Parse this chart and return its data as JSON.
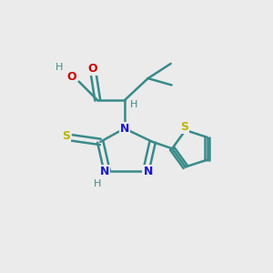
{
  "background_color": "#ebebeb",
  "atom_colors": {
    "C": "#3a8a8a",
    "N": "#1818cc",
    "O": "#cc0000",
    "S_thiol": "#b8b800",
    "S_thio": "#b8b800",
    "H": "#3a8a8a"
  },
  "bond_color": "#3a8a8a",
  "bond_lw": 1.8,
  "figsize": [
    3.0,
    3.0
  ],
  "dpi": 100
}
